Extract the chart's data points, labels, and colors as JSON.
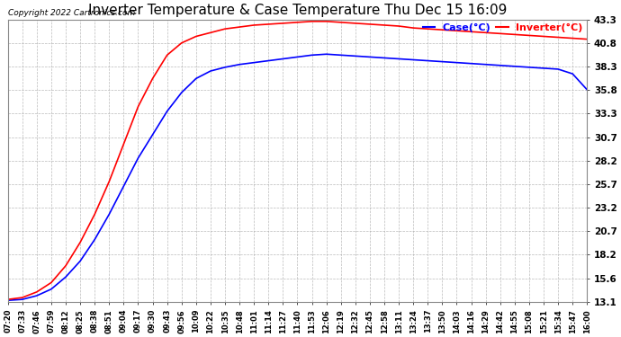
{
  "title": "Inverter Temperature & Case Temperature Thu Dec 15 16:09",
  "copyright": "Copyright 2022 Cartronics.com",
  "legend_labels": [
    "Case(°C)",
    "Inverter(°C)"
  ],
  "legend_colors": [
    "blue",
    "red"
  ],
  "yticks": [
    13.1,
    15.6,
    18.2,
    20.7,
    23.2,
    25.7,
    28.2,
    30.7,
    33.3,
    35.8,
    38.3,
    40.8,
    43.3
  ],
  "ylim": [
    13.1,
    43.3
  ],
  "xtick_labels": [
    "07:20",
    "07:33",
    "07:46",
    "07:59",
    "08:12",
    "08:25",
    "08:38",
    "08:51",
    "09:04",
    "09:17",
    "09:30",
    "09:43",
    "09:56",
    "10:09",
    "10:22",
    "10:35",
    "10:48",
    "11:01",
    "11:14",
    "11:27",
    "11:40",
    "11:53",
    "12:06",
    "12:19",
    "12:32",
    "12:45",
    "12:58",
    "13:11",
    "13:24",
    "13:37",
    "13:50",
    "14:03",
    "14:16",
    "14:29",
    "14:42",
    "14:55",
    "15:08",
    "15:21",
    "15:34",
    "15:47",
    "16:00"
  ],
  "bg_color": "#ffffff",
  "plot_bg_color": "#ffffff",
  "grid_color": "#aaaaaa",
  "title_color": "#000000",
  "tick_color": "#000000",
  "copyright_color": "#000000",
  "line_width": 1.2,
  "case_color": "#0000ff",
  "inverter_color": "#ff0000",
  "case_data_y": [
    13.3,
    13.4,
    13.8,
    14.5,
    15.8,
    17.5,
    19.8,
    22.5,
    25.5,
    28.5,
    31.0,
    33.5,
    35.5,
    37.0,
    37.8,
    38.2,
    38.5,
    38.7,
    38.9,
    39.1,
    39.3,
    39.5,
    39.6,
    39.5,
    39.4,
    39.3,
    39.2,
    39.1,
    39.0,
    38.9,
    38.8,
    38.7,
    38.6,
    38.5,
    38.4,
    38.3,
    38.2,
    38.1,
    38.0,
    37.5,
    35.8
  ],
  "inverter_data_y": [
    13.4,
    13.6,
    14.2,
    15.2,
    17.0,
    19.5,
    22.5,
    26.0,
    30.0,
    34.0,
    37.0,
    39.5,
    40.8,
    41.5,
    41.9,
    42.3,
    42.5,
    42.7,
    42.8,
    42.9,
    43.0,
    43.1,
    43.1,
    43.0,
    42.9,
    42.8,
    42.7,
    42.6,
    42.4,
    42.3,
    42.2,
    42.1,
    42.0,
    41.9,
    41.8,
    41.7,
    41.6,
    41.5,
    41.4,
    41.3,
    41.2
  ]
}
